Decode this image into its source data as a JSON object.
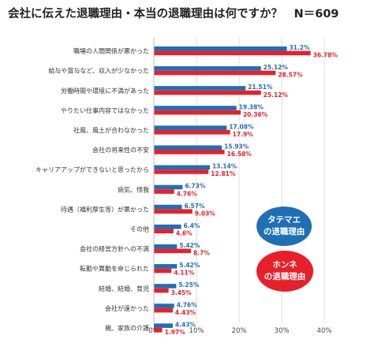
{
  "chart_data": {
    "type": "bar",
    "orientation": "horizontal",
    "title": "会社に伝えた退職理由・本当の退職理由は何ですか？　N＝609",
    "xlim": [
      0,
      40
    ],
    "x_ticks": [
      "0%",
      "10%",
      "20%",
      "30%",
      "40%"
    ],
    "grid": true,
    "categories": [
      "職場の人間関係が悪かった",
      "給与や賞与など、収入が少なかった",
      "労働時間や環境に不満があった",
      "やりたい仕事内容ではなかった",
      "社風、風土が合わなかった",
      "会社の将来性の不安",
      "キャリアアップができないと思ったから",
      "病気、怪我",
      "待遇（福利厚生等）が悪かった",
      "その他",
      "会社の経営方針への不満",
      "転勤や異動を命じられた",
      "結婚、結婚、育児",
      "会社が遠かった",
      "親、家族の介護"
    ],
    "series": [
      {
        "name": "タテマエの退職理由",
        "color": "#1f6fb6",
        "values": [
          31.2,
          25.12,
          21.51,
          19.38,
          17.08,
          15.93,
          13.14,
          6.73,
          6.57,
          6.4,
          5.42,
          5.42,
          5.25,
          4.76,
          4.43
        ],
        "labels": [
          "31.2%",
          "25.12%",
          "21.51%",
          "19.38%",
          "17.08%",
          "15.93%",
          "13.14%",
          "6.73%",
          "6.57%",
          "6.4%",
          "5.42%",
          "5.42%",
          "5.25%",
          "4.76%",
          "4.43%"
        ]
      },
      {
        "name": "ホンネの退職理由",
        "color": "#e8202a",
        "values": [
          36.78,
          28.57,
          25.12,
          20.36,
          17.9,
          16.58,
          12.81,
          4.76,
          9.03,
          4.6,
          8.7,
          4.11,
          3.45,
          4.43,
          1.97
        ],
        "labels": [
          "36.78%",
          "28.57%",
          "25.12%",
          "20.36%",
          "17.9%",
          "16.58%",
          "12.81%",
          "4.76%",
          "9.03%",
          "4.6%",
          "8.7%",
          "4.11%",
          "3.45%",
          "4.43%",
          "1.97%"
        ]
      }
    ]
  },
  "legend": {
    "tatemae": {
      "line1": "タテマエ",
      "line2": "の退職理由"
    },
    "honne": {
      "line1": "ホンネ",
      "line2": "の退職理由"
    }
  }
}
